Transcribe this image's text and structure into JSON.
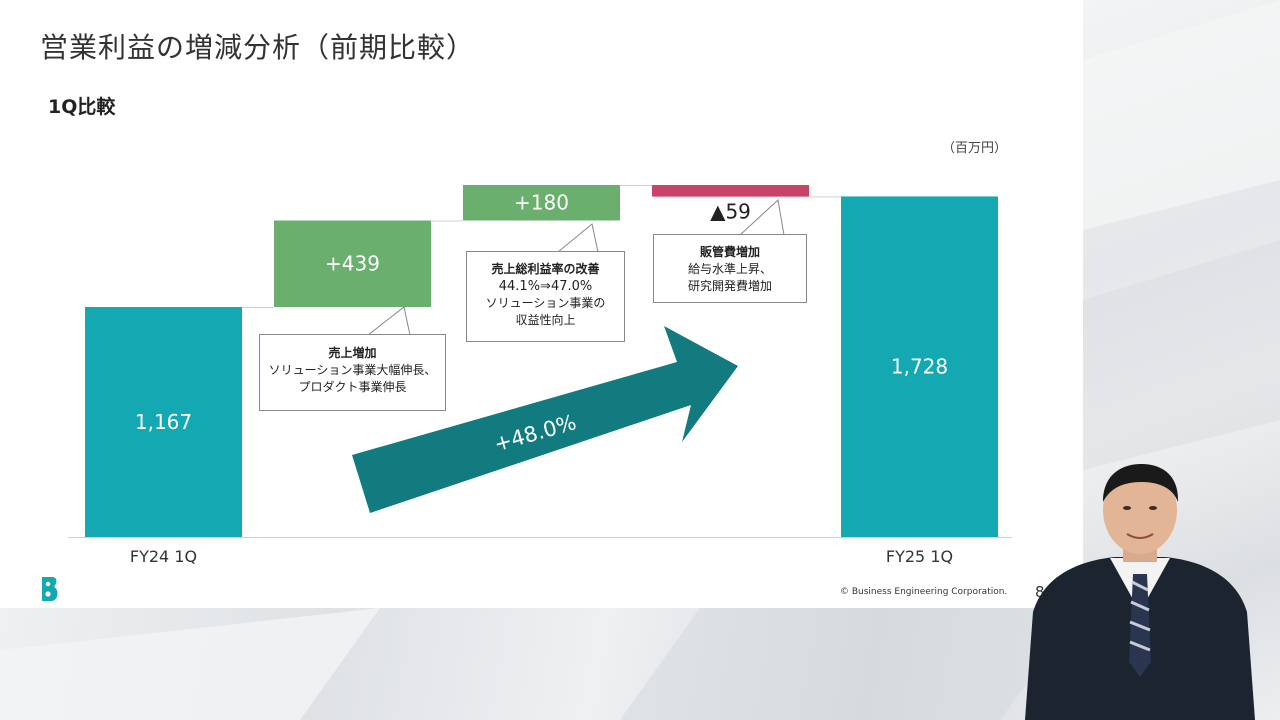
{
  "slide": {
    "title": "営業利益の増減分析（前期比較）",
    "subtitle": "1Q比較",
    "unit": "（百万円）",
    "page_number": "8",
    "copyright": "© Business Engineering Corporation."
  },
  "callouts": {
    "sales": {
      "head": "売上増加",
      "line1": "ソリューション事業大幅伸長、",
      "line2": "プロダクト事業伸長"
    },
    "margin": {
      "head": "売上総利益率の改善",
      "line1": "44.1%⇒47.0%",
      "line2": "ソリューション事業の",
      "line3": "収益性向上"
    },
    "sga": {
      "head": "販管費増加",
      "line1": "給与水準上昇、",
      "line2": "研究開発費増加"
    }
  },
  "arrow_label": "+48.0%",
  "colors": {
    "base_bar": "#14a9b2",
    "increase": "#6aaf6d",
    "decrease": "#c9426a",
    "arrow": "#117b7f"
  },
  "chart_data": {
    "type": "bar",
    "subtype": "waterfall",
    "categories": [
      "FY24 1Q",
      "売上増加",
      "売上総利益率の改善",
      "販管費増加",
      "FY25 1Q"
    ],
    "values": [
      1167,
      439,
      180,
      -59,
      1728
    ],
    "kinds": [
      "total",
      "increase",
      "increase",
      "decrease",
      "total"
    ],
    "labels": [
      "1,167",
      "+439",
      "+180",
      "▲59",
      "1,728"
    ],
    "axis_labels": [
      "FY24 1Q",
      "",
      "",
      "",
      "FY25 1Q"
    ],
    "ylim": [
      0,
      1800
    ]
  }
}
